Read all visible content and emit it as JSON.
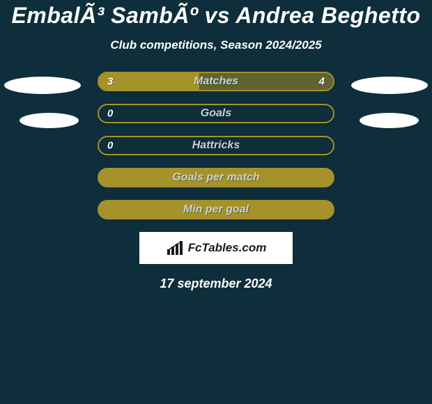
{
  "header": {
    "title": "EmbalÃ³ SambÃº vs Andrea Beghetto",
    "subtitle": "Club competitions, Season 2024/2025"
  },
  "colors": {
    "background": "#0d2e3a",
    "bar_fill": "#a59229",
    "bar_border": "#a59229",
    "bar_empty_border": "#a59229",
    "text_light": "#ffffff",
    "label_gray": "#c8d4d8"
  },
  "stats": [
    {
      "label": "Matches",
      "left_value": "3",
      "right_value": "4",
      "left_pct": 42.9,
      "right_pct": 57.1,
      "show_right": true
    },
    {
      "label": "Goals",
      "left_value": "0",
      "right_value": "",
      "left_pct": 0,
      "right_pct": 0,
      "show_right": false
    },
    {
      "label": "Hattricks",
      "left_value": "0",
      "right_value": "",
      "left_pct": 0,
      "right_pct": 0,
      "show_right": false
    },
    {
      "label": "Goals per match",
      "left_value": "",
      "right_value": "",
      "left_pct": 0,
      "right_pct": 100,
      "show_right": false
    },
    {
      "label": "Min per goal",
      "left_value": "",
      "right_value": "",
      "left_pct": 0,
      "right_pct": 100,
      "show_right": false
    }
  ],
  "footer": {
    "logo_text": "FcTables.com",
    "date": "17 september 2024"
  }
}
